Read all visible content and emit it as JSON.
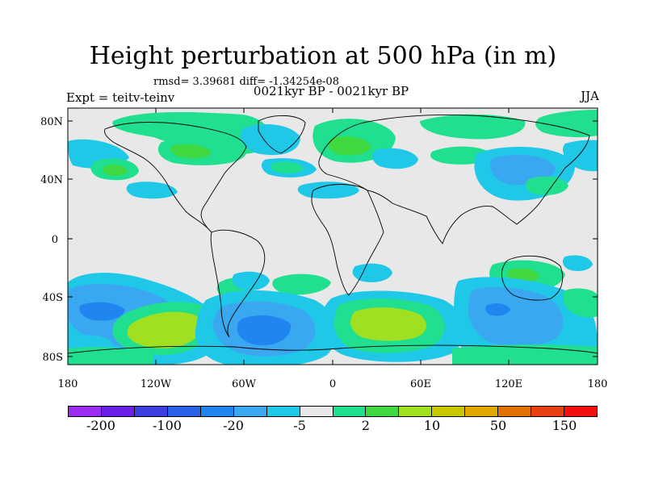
{
  "figure": {
    "title": "Height perturbation at 500 hPa (in m)",
    "stats": "rmsd= 3.39681 diff= -1.34254e-08",
    "period": "0021kyr BP - 0021kyr BP",
    "experiment": "Expt = teitv-teinv",
    "season": "JJA"
  },
  "axes": {
    "lat_labels": [
      "80N",
      "40N",
      "0",
      "40S",
      "80S"
    ],
    "lon_labels": [
      "180",
      "120W",
      "60W",
      "0",
      "60E",
      "120E",
      "180"
    ]
  },
  "colorbar": {
    "labels": [
      "-200",
      "-100",
      "-20",
      "-5",
      "2",
      "10",
      "50",
      "150"
    ],
    "colors": [
      "#9b2cf0",
      "#6a1ee8",
      "#3f3fe0",
      "#2a62e8",
      "#1f86f0",
      "#3aa8f0",
      "#20c8e8",
      "#e8e8e8",
      "#20e090",
      "#40d840",
      "#a0e020",
      "#c8c800",
      "#e0a800",
      "#e07000",
      "#e84010",
      "#f01010"
    ]
  },
  "map_colors": {
    "land_bg": "#e8e8e8",
    "light_blue": "#20c8e8",
    "blue": "#3aa8f0",
    "dark_blue": "#1f86f0",
    "teal": "#20e090",
    "green": "#40d840",
    "yellow_green": "#a0e020"
  }
}
